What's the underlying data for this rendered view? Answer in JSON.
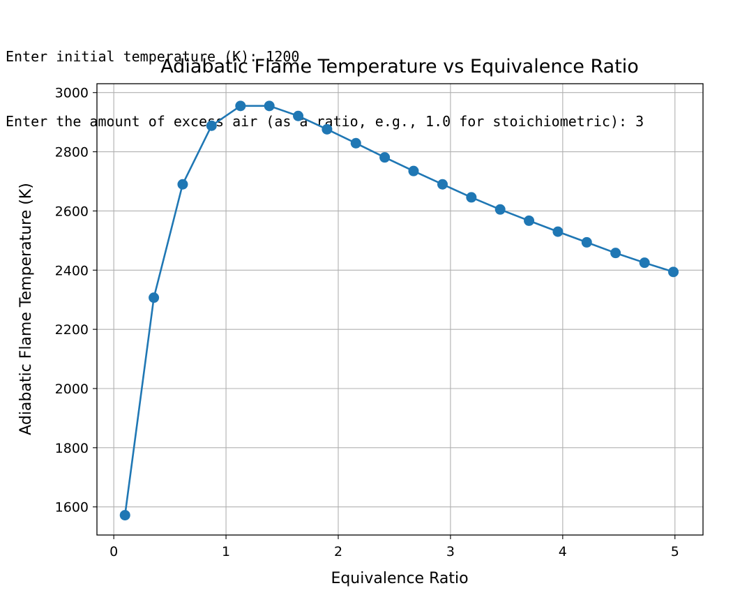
{
  "console": {
    "lines": [
      "Enter initial temperature (K): 1200",
      "Enter the amount of excess air (as a ratio, e.g., 1.0 for stoichiometric): 3"
    ]
  },
  "chart_data": {
    "type": "line",
    "title": "Adiabatic Flame Temperature vs Equivalence Ratio",
    "xlabel": "Equivalence Ratio",
    "ylabel": "Adiabatic Flame Temperature (K)",
    "xlim": [
      -0.15,
      5.25
    ],
    "ylim": [
      1505,
      3030
    ],
    "xticks": [
      0,
      1,
      2,
      3,
      4,
      5
    ],
    "yticks": [
      1600,
      1800,
      2000,
      2200,
      2400,
      2600,
      2800,
      3000
    ],
    "grid": true,
    "series_color": "#1f77b4",
    "x": [
      0.1,
      0.357,
      0.614,
      0.871,
      1.129,
      1.386,
      1.643,
      1.9,
      2.157,
      2.414,
      2.671,
      2.929,
      3.186,
      3.443,
      3.7,
      3.957,
      4.214,
      4.471,
      4.729,
      4.986
    ],
    "y": [
      1572,
      2307,
      2690,
      2888,
      2955,
      2955,
      2921,
      2876,
      2829,
      2781,
      2735,
      2690,
      2646,
      2605,
      2567,
      2530,
      2494,
      2458,
      2425,
      2394
    ]
  }
}
